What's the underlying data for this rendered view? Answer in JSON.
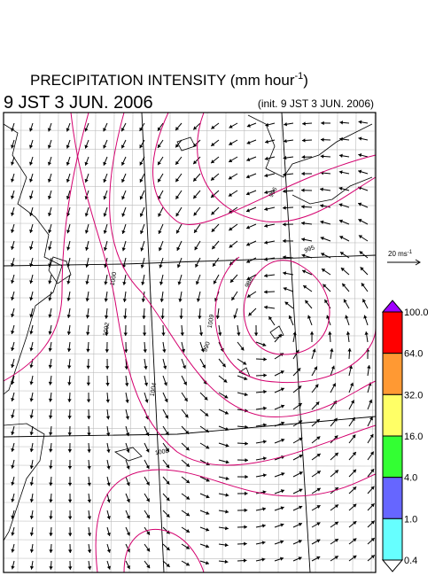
{
  "title": "PRECIPITATION INTENSITY (mm hour",
  "title_sup": "-1",
  "title_end": ")",
  "valid_time": "9 JST 3 JUN. 2006",
  "init_time": "(init. 9 JST 3 JUN. 2006)",
  "wind_scale": {
    "label": "20 ms",
    "label_sup": "-1"
  },
  "isobar_labels": [
    "996",
    "995",
    "986",
    "990",
    "1000",
    "1002",
    "1004",
    "1008",
    "1009"
  ],
  "colorbar": {
    "labels": [
      "100.0",
      "64.0",
      "32.0",
      "16.0",
      "4.0",
      "1.0",
      "0.4"
    ],
    "colors": [
      "#a000ff",
      "#ff0000",
      "#ff9933",
      "#ffff66",
      "#33ff33",
      "#6666ff",
      "#66ffff",
      "#ffffff"
    ]
  }
}
